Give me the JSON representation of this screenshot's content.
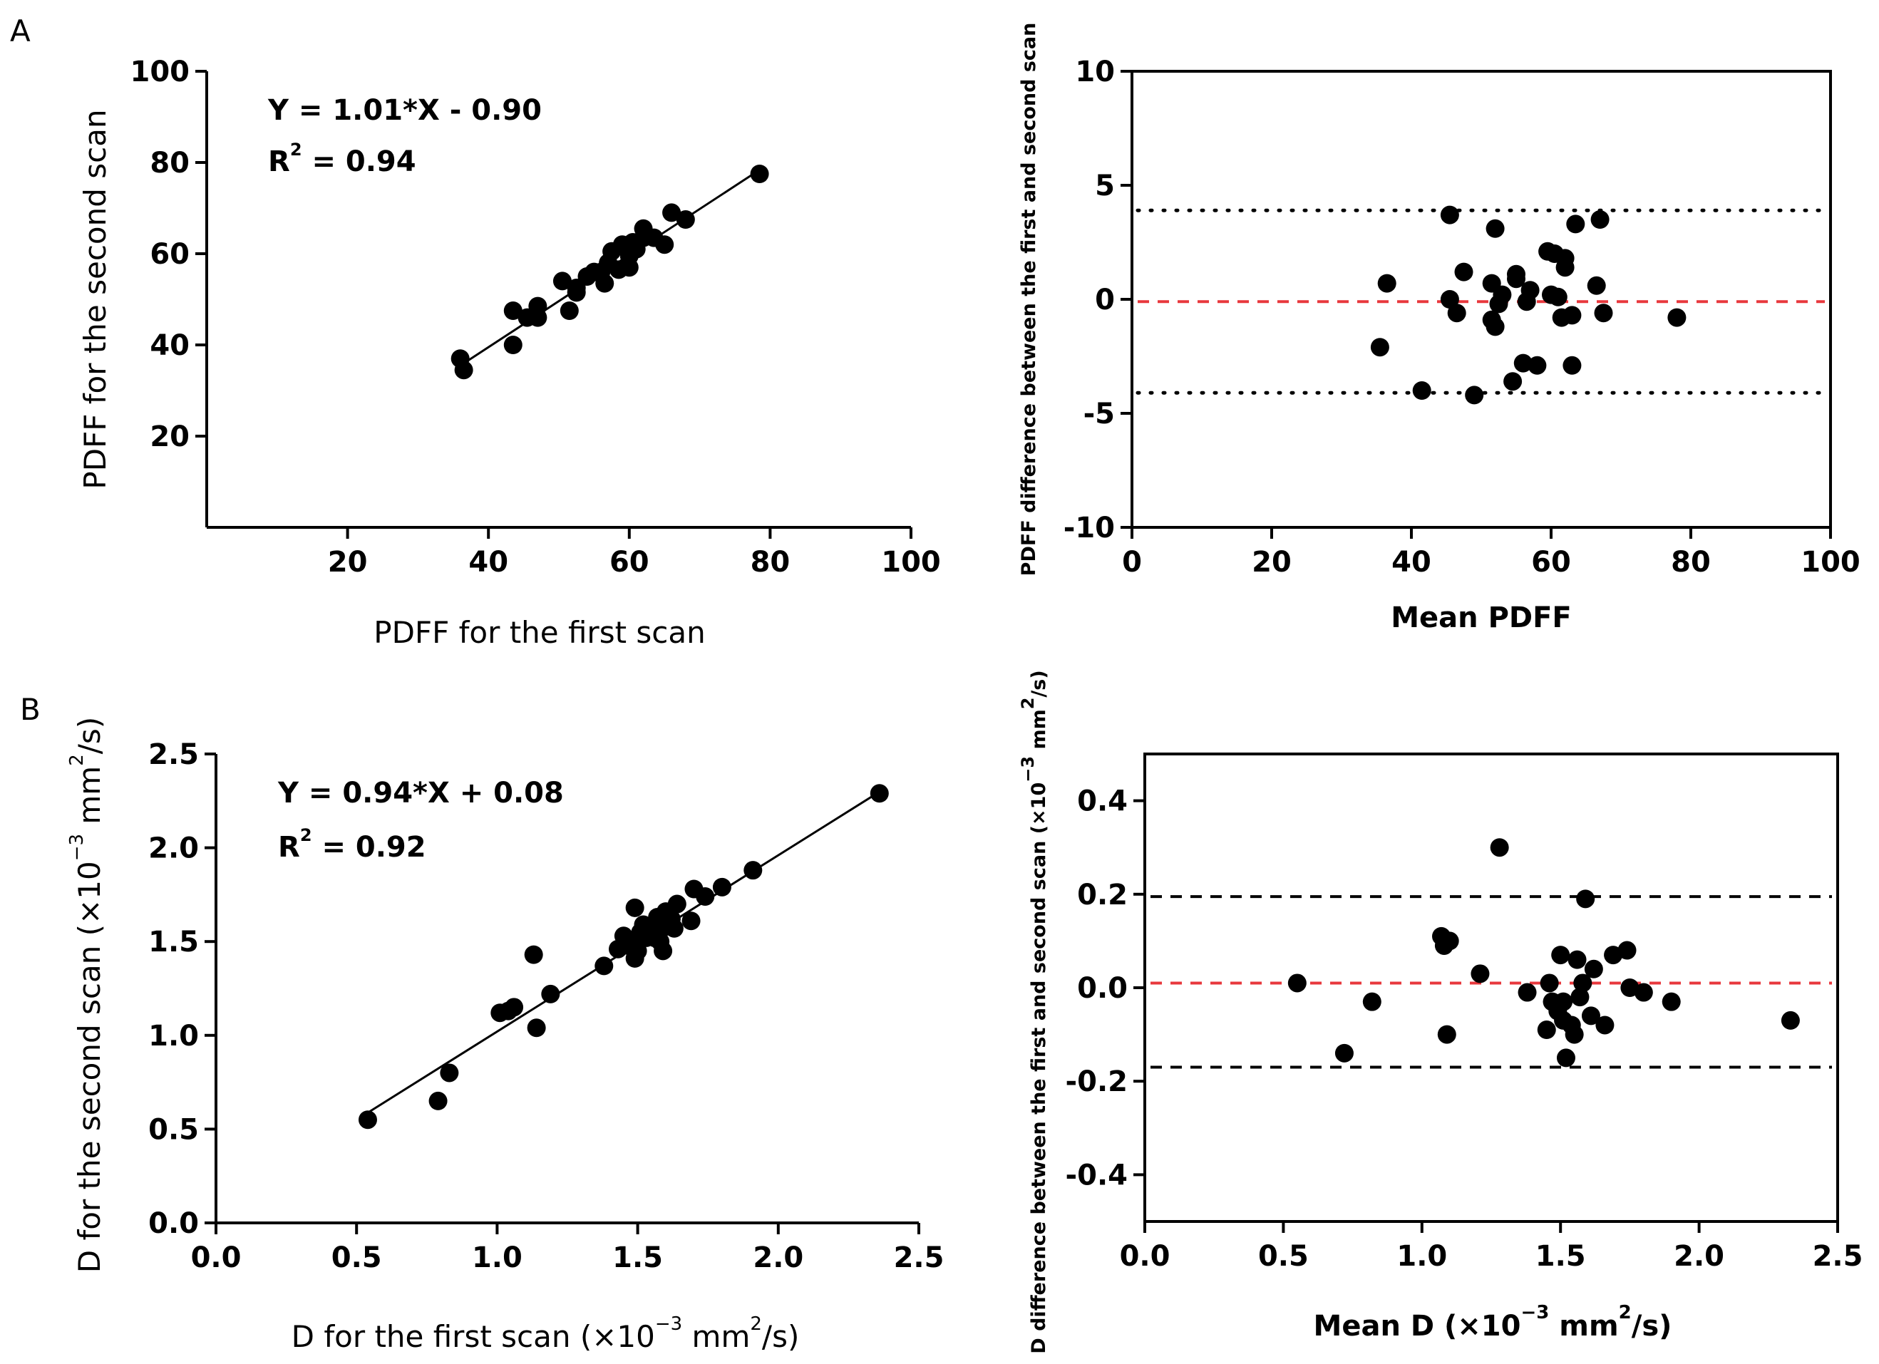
{
  "panels": {
    "A": "A",
    "B": "B"
  },
  "colors": {
    "mean_line": "#e8383d",
    "limit_line": "#000000",
    "points": "#000000"
  },
  "chart_data": [
    {
      "id": "A-regression",
      "type": "scatter",
      "xlabel": "PDFF for the first scan",
      "ylabel": "PDFF for the second scan",
      "xlim": [
        0,
        100
      ],
      "ylim": [
        0,
        100
      ],
      "xticks": [
        20,
        40,
        60,
        80,
        100
      ],
      "yticks": [
        20,
        40,
        60,
        80,
        100
      ],
      "xtick_labels": [
        "20",
        "40",
        "60",
        "80",
        "100"
      ],
      "ytick_labels": [
        "20",
        "40",
        "60",
        "80",
        "100"
      ],
      "equation": "Y = 1.01*X - 0.90",
      "r2_label": "R",
      "r2_sup": "2",
      "r2_value": " = 0.94",
      "fit": {
        "slope": 1.01,
        "intercept": -0.9,
        "x_range": [
          36,
          78
        ]
      },
      "x": [
        36,
        36.5,
        43.5,
        43.5,
        45.5,
        47,
        47,
        50.5,
        51.5,
        52.5,
        52.5,
        54,
        55,
        56,
        56.5,
        57,
        57.5,
        58.5,
        59,
        60,
        60,
        60.5,
        61,
        62,
        62,
        63.5,
        65,
        66,
        68,
        78.5
      ],
      "y": [
        37,
        34.5,
        47.5,
        40,
        46,
        46,
        48.5,
        54,
        47.5,
        52.5,
        51.5,
        55,
        56,
        56,
        53.5,
        58,
        60.5,
        56.5,
        62,
        59.5,
        57,
        62.5,
        61,
        63.5,
        65.5,
        63.5,
        62,
        69,
        67.5,
        77.5
      ]
    },
    {
      "id": "A-bland-altman",
      "type": "scatter",
      "xlabel": "Mean PDFF",
      "ylabel": "PDFF difference between the first and second scan",
      "xlim": [
        0,
        100
      ],
      "ylim": [
        -10,
        10
      ],
      "xticks": [
        0,
        20,
        40,
        60,
        80,
        100
      ],
      "yticks": [
        -10,
        -5,
        0,
        5,
        10
      ],
      "xtick_labels": [
        "0",
        "20",
        "40",
        "60",
        "80",
        "100"
      ],
      "ytick_labels": [
        "-10",
        "-5",
        "0",
        "5",
        "10"
      ],
      "mean_difference": -0.1,
      "upper_limit": 3.9,
      "lower_limit": -4.1,
      "x": [
        35.5,
        36.5,
        41.5,
        45.5,
        45.5,
        46.5,
        47.5,
        49,
        51.5,
        51.5,
        52,
        52,
        52.5,
        53,
        54.5,
        55,
        55,
        56,
        56.5,
        57,
        58,
        59.5,
        60,
        60.5,
        61,
        61.5,
        62,
        62,
        63,
        63,
        63.5,
        66.5,
        67,
        67.5,
        78
      ],
      "y": [
        -2.1,
        0.7,
        -4,
        3.7,
        0,
        -0.6,
        1.2,
        -4.2,
        -0.9,
        0.7,
        -1.2,
        3.1,
        -0.2,
        0.2,
        -3.6,
        1.1,
        0.9,
        -2.8,
        -0.1,
        0.4,
        -2.9,
        2.1,
        0.2,
        2,
        0.1,
        -0.8,
        1.4,
        1.8,
        -0.7,
        -2.9,
        3.3,
        0.6,
        3.5,
        -0.6,
        -0.8
      ]
    },
    {
      "id": "B-regression",
      "type": "scatter",
      "xlabel_main": "D for the first scan (×10",
      "xlabel_exp": "−3",
      "xlabel_unit": " mm",
      "xlabel_exp2": "2",
      "xlabel_end": "/s)",
      "ylabel_main": "D for the second scan (×10",
      "ylabel_exp": "−3",
      "ylabel_unit": " mm",
      "ylabel_exp2": "2",
      "ylabel_end": "/s)",
      "xlim": [
        0,
        2.5
      ],
      "ylim": [
        0,
        2.5
      ],
      "xticks": [
        0,
        0.5,
        1.0,
        1.5,
        2.0,
        2.5
      ],
      "yticks": [
        0,
        0.5,
        1.0,
        1.5,
        2.0,
        2.5
      ],
      "xtick_labels": [
        "0.0",
        "0.5",
        "1.0",
        "1.5",
        "2.0",
        "2.5"
      ],
      "ytick_labels": [
        "0.0",
        "0.5",
        "1.0",
        "1.5",
        "2.0",
        "2.5"
      ],
      "equation": "Y = 0.94*X + 0.08",
      "r2_label": "R",
      "r2_sup": "2",
      "r2_value": " = 0.92",
      "fit": {
        "slope": 0.94,
        "intercept": 0.08,
        "x_range": [
          0.54,
          2.36
        ]
      },
      "x": [
        0.54,
        0.79,
        0.83,
        1.01,
        1.04,
        1.06,
        1.13,
        1.14,
        1.19,
        1.38,
        1.43,
        1.45,
        1.46,
        1.47,
        1.49,
        1.49,
        1.5,
        1.51,
        1.52,
        1.53,
        1.55,
        1.56,
        1.57,
        1.58,
        1.59,
        1.6,
        1.6,
        1.62,
        1.63,
        1.64,
        1.69,
        1.7,
        1.74,
        1.8,
        1.91,
        2.36
      ],
      "y": [
        0.55,
        0.65,
        0.8,
        1.12,
        1.13,
        1.15,
        1.43,
        1.04,
        1.22,
        1.37,
        1.46,
        1.53,
        1.48,
        1.5,
        1.41,
        1.68,
        1.45,
        1.55,
        1.59,
        1.52,
        1.56,
        1.52,
        1.63,
        1.5,
        1.45,
        1.66,
        1.58,
        1.62,
        1.57,
        1.7,
        1.61,
        1.78,
        1.74,
        1.79,
        1.88,
        2.29
      ]
    },
    {
      "id": "B-bland-altman",
      "type": "scatter",
      "xlabel_main": "Mean D (×10",
      "xlabel_exp": "−3",
      "xlabel_unit": " mm",
      "xlabel_exp2": "2",
      "xlabel_end": "/s)",
      "ylabel_main": "D difference between the first and second scan (×10",
      "ylabel_exp": "−3",
      "ylabel_unit": " mm",
      "ylabel_exp2": "2",
      "ylabel_end": "/s)",
      "xlim": [
        0,
        2.5
      ],
      "ylim": [
        -0.5,
        0.5
      ],
      "xticks": [
        0,
        0.5,
        1.0,
        1.5,
        2.0,
        2.5
      ],
      "yticks": [
        -0.4,
        -0.2,
        0.0,
        0.2,
        0.4
      ],
      "xtick_labels": [
        "0.0",
        "0.5",
        "1.0",
        "1.5",
        "2.0",
        "2.5"
      ],
      "ytick_labels": [
        "-0.4",
        "-0.2",
        "0.0",
        "0.2",
        "0.4"
      ],
      "mean_difference": 0.01,
      "upper_limit": 0.195,
      "lower_limit": -0.17,
      "x": [
        0.55,
        0.72,
        0.82,
        1.07,
        1.08,
        1.1,
        1.09,
        1.21,
        1.28,
        1.38,
        1.45,
        1.46,
        1.47,
        1.49,
        1.5,
        1.51,
        1.51,
        1.52,
        1.54,
        1.55,
        1.56,
        1.57,
        1.58,
        1.59,
        1.61,
        1.62,
        1.66,
        1.69,
        1.74,
        1.75,
        1.8,
        1.9,
        2.33
      ],
      "y": [
        0.01,
        -0.14,
        -0.03,
        0.11,
        0.09,
        0.1,
        -0.1,
        0.03,
        0.3,
        -0.01,
        -0.09,
        0.01,
        -0.03,
        -0.05,
        0.07,
        -0.07,
        -0.03,
        -0.15,
        -0.08,
        -0.1,
        0.06,
        -0.02,
        0.01,
        0.19,
        -0.06,
        0.04,
        -0.08,
        0.07,
        0.08,
        0.0,
        -0.01,
        -0.03,
        -0.07
      ]
    }
  ]
}
